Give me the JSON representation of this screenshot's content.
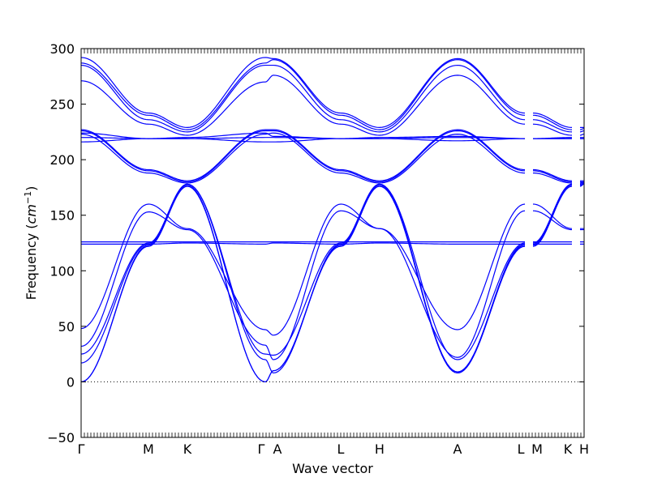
{
  "chart_data": {
    "type": "line",
    "title": "",
    "xlabel": "Wave vector",
    "ylabel": "Frequency",
    "ylabel_unit_text": "cm",
    "ylabel_unit_exponent": "−1",
    "ylim": [
      -50,
      300
    ],
    "yticks": [
      -50,
      0,
      50,
      100,
      150,
      200,
      250,
      300
    ],
    "ytick_labels": [
      "−50",
      "0",
      "50",
      "100",
      "150",
      "200",
      "250",
      "300"
    ],
    "grid": false,
    "legend": "none",
    "series_color": "#0000ff",
    "zero_line": {
      "y": 0,
      "style": "dotted",
      "color": "#000000"
    },
    "high_symmetry_points": [
      {
        "label": "Γ",
        "x": 0.0
      },
      {
        "label": "M",
        "x": 0.1338
      },
      {
        "label": "K",
        "x": 0.2112
      },
      {
        "label": "Γ",
        "x": 0.3661
      },
      {
        "label": "A",
        "x": 0.3823
      },
      {
        "label": "L",
        "x": 0.5161
      },
      {
        "label": "H",
        "x": 0.5934
      },
      {
        "label": "A",
        "x": 0.7484
      },
      {
        "label": "L",
        "x": 0.8823
      },
      {
        "label": "M",
        "x": 0.8984
      },
      {
        "label": "K",
        "x": 0.9758
      },
      {
        "label": "H",
        "x": 0.9919
      }
    ],
    "segments": [
      {
        "from": "Γ",
        "to": "M",
        "x0": 0.0,
        "x1": 0.1338
      },
      {
        "from": "M",
        "to": "K",
        "x0": 0.1338,
        "x1": 0.2112
      },
      {
        "from": "K",
        "to": "Γ",
        "x0": 0.2112,
        "x1": 0.3661
      },
      {
        "from": "Γ",
        "to": "A",
        "x0": 0.3661,
        "x1": 0.3823
      },
      {
        "from": "A",
        "to": "L",
        "x0": 0.3823,
        "x1": 0.5161
      },
      {
        "from": "L",
        "to": "H",
        "x0": 0.5161,
        "x1": 0.5934
      },
      {
        "from": "H",
        "to": "A",
        "x0": 0.5934,
        "x1": 0.7484
      },
      {
        "from": "A",
        "to": "L",
        "x0": 0.7484,
        "x1": 0.8823
      },
      {
        "from": "M",
        "to": "K",
        "x0": 0.8984,
        "x1": 0.9758
      },
      {
        "from": "H",
        "to": "K",
        "x0": 0.9919,
        "x1": 1.0
      }
    ],
    "bands": [
      {
        "y": [
          0,
          122,
          176,
          0,
          10,
          122,
          176,
          8,
          122,
          176,
          178
        ]
      },
      {
        "y": [
          0,
          123,
          177,
          0,
          10,
          123,
          177,
          8,
          123,
          177,
          178
        ]
      },
      {
        "y": [
          17,
          124,
          178,
          20,
          8,
          124,
          178,
          9,
          124,
          178,
          179
        ]
      },
      {
        "y": [
          25,
          125,
          178,
          25,
          24,
          125,
          178,
          20,
          125,
          178,
          179
        ]
      },
      {
        "y": [
          32,
          153,
          137,
          33,
          20,
          154,
          138,
          22,
          154,
          137,
          137
        ]
      },
      {
        "y": [
          48,
          160,
          138,
          47,
          42,
          160,
          138,
          47,
          160,
          138,
          138
        ]
      },
      {
        "y": [
          124,
          124,
          125,
          124,
          125,
          124,
          125,
          124,
          124,
          124,
          124
        ]
      },
      {
        "y": [
          126,
          126,
          126,
          126,
          126,
          126,
          126,
          126,
          126,
          126,
          126
        ]
      },
      {
        "y": [
          223,
          188,
          179,
          223,
          224,
          188,
          179,
          223,
          188,
          179,
          180
        ]
      },
      {
        "y": [
          226,
          190,
          180,
          226,
          226,
          190,
          180,
          226,
          190,
          180,
          180
        ]
      },
      {
        "y": [
          227,
          191,
          181,
          227,
          227,
          191,
          181,
          227,
          191,
          181,
          181
        ]
      },
      {
        "y": [
          216,
          219,
          219,
          216,
          216,
          219,
          219,
          217,
          219,
          219,
          219
        ]
      },
      {
        "y": [
          220,
          219,
          219,
          220,
          220,
          219,
          219,
          220,
          219,
          219,
          219
        ]
      },
      {
        "y": [
          224,
          219,
          220,
          224,
          221,
          219,
          220,
          221,
          219,
          220,
          220
        ]
      },
      {
        "y": [
          271,
          232,
          222,
          270,
          276,
          232,
          222,
          276,
          232,
          222,
          223
        ]
      },
      {
        "y": [
          285,
          236,
          225,
          285,
          285,
          236,
          225,
          285,
          236,
          225,
          226
        ]
      },
      {
        "y": [
          287,
          240,
          227,
          287,
          290,
          240,
          227,
          290,
          240,
          227,
          228
        ]
      },
      {
        "y": [
          292,
          242,
          229,
          292,
          291,
          242,
          229,
          291,
          242,
          229,
          229
        ]
      }
    ]
  }
}
